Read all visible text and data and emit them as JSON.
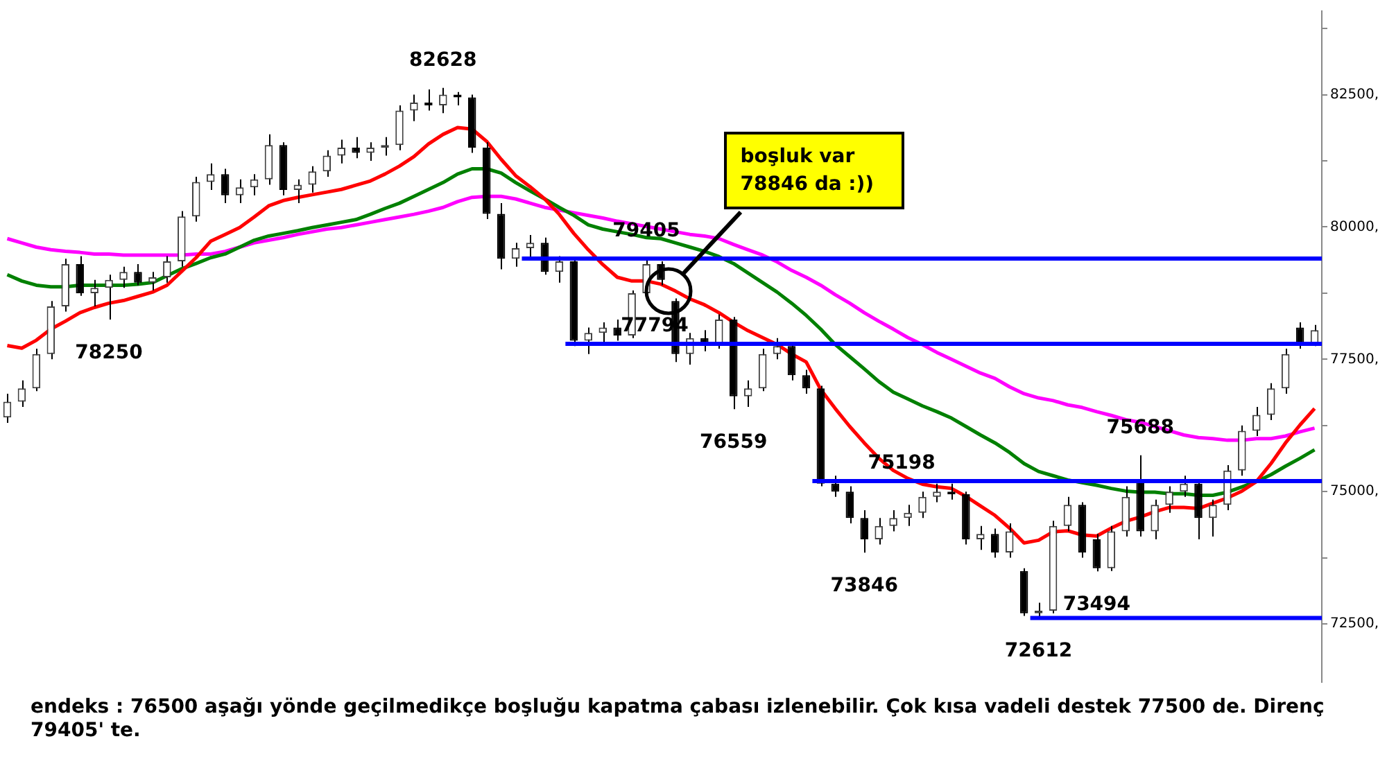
{
  "chart_data": {
    "type": "candlestick",
    "legend": false,
    "tick_labels": "y",
    "categories": [
      null,
      null,
      null,
      null,
      null,
      null,
      null,
      null,
      null,
      null,
      null,
      null,
      null,
      null,
      null,
      null,
      null,
      null,
      null,
      null,
      null,
      null,
      null,
      null,
      null,
      null,
      null,
      null,
      null,
      null,
      null,
      null,
      null,
      null,
      null,
      null,
      null,
      null,
      null,
      null,
      null,
      null,
      null,
      null,
      null,
      null,
      null,
      null,
      null,
      null,
      null,
      null,
      null,
      null,
      null,
      null,
      null,
      null,
      null,
      null,
      null,
      null,
      null,
      null,
      null,
      null,
      null,
      null,
      null,
      null,
      null,
      null,
      null,
      null,
      null,
      null,
      null,
      null,
      null,
      null,
      null,
      null,
      null,
      null,
      null,
      null,
      null,
      null,
      null,
      null,
      null
    ],
    "ohlc": [
      [
        76400,
        76850,
        76300,
        76700
      ],
      [
        76700,
        77100,
        76600,
        76950
      ],
      [
        76950,
        77700,
        76900,
        77600
      ],
      [
        77600,
        78600,
        77500,
        78500
      ],
      [
        78500,
        79400,
        78400,
        79300
      ],
      [
        79300,
        79450,
        78700,
        78750
      ],
      [
        78750,
        79000,
        78500,
        78850
      ],
      [
        78850,
        79100,
        78250,
        79000
      ],
      [
        79000,
        79250,
        78850,
        79150
      ],
      [
        79150,
        79300,
        78900,
        78950
      ],
      [
        78950,
        79150,
        78800,
        79050
      ],
      [
        79050,
        79450,
        78950,
        79350
      ],
      [
        79350,
        80300,
        79250,
        80200
      ],
      [
        80200,
        80950,
        80100,
        80850
      ],
      [
        80850,
        81200,
        80700,
        81000
      ],
      [
        81000,
        81100,
        80450,
        80600
      ],
      [
        80600,
        80900,
        80450,
        80750
      ],
      [
        80750,
        81000,
        80600,
        80900
      ],
      [
        80900,
        81750,
        80800,
        81550
      ],
      [
        81550,
        81600,
        80600,
        80700
      ],
      [
        80700,
        80900,
        80450,
        80800
      ],
      [
        80800,
        81150,
        80650,
        81050
      ],
      [
        81050,
        81450,
        80950,
        81350
      ],
      [
        81350,
        81650,
        81200,
        81500
      ],
      [
        81500,
        81700,
        81300,
        81400
      ],
      [
        81400,
        81600,
        81250,
        81500
      ],
      [
        81500,
        81700,
        81350,
        81550
      ],
      [
        81550,
        82300,
        81450,
        82200
      ],
      [
        82200,
        82500,
        82000,
        82350
      ],
      [
        82350,
        82600,
        82200,
        82300
      ],
      [
        82300,
        82628,
        82150,
        82500
      ],
      [
        82500,
        82550,
        82300,
        82450
      ],
      [
        82450,
        82500,
        81400,
        81500
      ],
      [
        81500,
        81600,
        80150,
        80250
      ],
      [
        80250,
        80450,
        79200,
        79400
      ],
      [
        79400,
        79700,
        79250,
        79600
      ],
      [
        79600,
        79850,
        79400,
        79700
      ],
      [
        79700,
        79800,
        79100,
        79150
      ],
      [
        79150,
        79450,
        78950,
        79350
      ],
      [
        79350,
        79400,
        77750,
        77850
      ],
      [
        77850,
        78100,
        77600,
        78000
      ],
      [
        78000,
        78200,
        77800,
        78100
      ],
      [
        78100,
        78250,
        77850,
        77950
      ],
      [
        77950,
        78800,
        77900,
        78750
      ],
      [
        78750,
        79405,
        78700,
        79300
      ],
      [
        79300,
        79350,
        78900,
        79000
      ],
      [
        78600,
        78650,
        77450,
        77600
      ],
      [
        77600,
        78000,
        77400,
        77900
      ],
      [
        77900,
        78050,
        77650,
        77800
      ],
      [
        77800,
        78350,
        77700,
        78250
      ],
      [
        78250,
        78300,
        76559,
        76800
      ],
      [
        76800,
        77100,
        76600,
        76950
      ],
      [
        76950,
        77700,
        76900,
        77600
      ],
      [
        77600,
        77900,
        77500,
        77750
      ],
      [
        77750,
        77800,
        77100,
        77200
      ],
      [
        77200,
        77300,
        76850,
        76950
      ],
      [
        76950,
        77000,
        75100,
        75150
      ],
      [
        75150,
        75300,
        74900,
        75000
      ],
      [
        75000,
        75100,
        74400,
        74500
      ],
      [
        74500,
        74650,
        73846,
        74100
      ],
      [
        74100,
        74500,
        74000,
        74350
      ],
      [
        74350,
        74650,
        74250,
        74500
      ],
      [
        74500,
        74750,
        74350,
        74600
      ],
      [
        74600,
        75000,
        74500,
        74900
      ],
      [
        74900,
        75150,
        74800,
        75000
      ],
      [
        75000,
        75150,
        74850,
        74950
      ],
      [
        74950,
        75000,
        74000,
        74100
      ],
      [
        74100,
        74350,
        73900,
        74200
      ],
      [
        74200,
        74300,
        73750,
        73850
      ],
      [
        73850,
        74400,
        73750,
        74250
      ],
      [
        73500,
        73550,
        72650,
        72700
      ],
      [
        72700,
        72900,
        72612,
        72750
      ],
      [
        72750,
        74450,
        72700,
        74350
      ],
      [
        74350,
        74900,
        74250,
        74750
      ],
      [
        74750,
        74800,
        73750,
        73850
      ],
      [
        74100,
        74200,
        73494,
        73550
      ],
      [
        73550,
        74350,
        73500,
        74250
      ],
      [
        74250,
        75100,
        74150,
        74900
      ],
      [
        75200,
        75688,
        74150,
        74250
      ],
      [
        74250,
        74850,
        74100,
        74750
      ],
      [
        74750,
        75100,
        74600,
        75000
      ],
      [
        75000,
        75300,
        74900,
        75150
      ],
      [
        75150,
        75200,
        74100,
        74500
      ],
      [
        74500,
        74850,
        74150,
        74750
      ],
      [
        74750,
        75500,
        74650,
        75400
      ],
      [
        75400,
        76250,
        75300,
        76150
      ],
      [
        76150,
        76600,
        76050,
        76450
      ],
      [
        76450,
        77050,
        76350,
        76950
      ],
      [
        76950,
        77700,
        76850,
        77600
      ],
      [
        78100,
        78200,
        77700,
        77800
      ],
      [
        77800,
        78150,
        77750,
        78050
      ]
    ],
    "series": [
      {
        "type": "line",
        "color": "#ff0000",
        "values": [
          77760,
          77710,
          77860,
          78070,
          78220,
          78380,
          78480,
          78560,
          78610,
          78690,
          78770,
          78900,
          79160,
          79420,
          79730,
          79860,
          79990,
          80190,
          80400,
          80500,
          80560,
          80610,
          80660,
          80710,
          80790,
          80870,
          81000,
          81150,
          81330,
          81570,
          81750,
          81880,
          81850,
          81620,
          81280,
          80970,
          80760,
          80530,
          80240,
          79880,
          79570,
          79290,
          79050,
          78980,
          78980,
          78920,
          78790,
          78640,
          78530,
          78380,
          78200,
          78040,
          77910,
          77780,
          77600,
          77450,
          76930,
          76570,
          76230,
          75920,
          75630,
          75400,
          75250,
          75140,
          75090,
          75060,
          74910,
          74730,
          74550,
          74310,
          74030,
          74080,
          74240,
          74260,
          74180,
          74160,
          74310,
          74440,
          74520,
          74620,
          74700,
          74700,
          74680,
          74780,
          74880,
          75010,
          75190,
          75530,
          75920,
          76260,
          76570
        ]
      },
      {
        "type": "line",
        "color": "#008000",
        "values": [
          79100,
          78980,
          78900,
          78870,
          78870,
          78900,
          78900,
          78900,
          78900,
          78920,
          78950,
          79080,
          79210,
          79310,
          79420,
          79490,
          79620,
          79750,
          79830,
          79880,
          79930,
          79990,
          80040,
          80090,
          80140,
          80240,
          80350,
          80450,
          80580,
          80710,
          80840,
          81000,
          81100,
          81100,
          81020,
          80840,
          80680,
          80530,
          80370,
          80220,
          80040,
          79960,
          79910,
          79860,
          79800,
          79780,
          79700,
          79620,
          79540,
          79440,
          79310,
          79130,
          78950,
          78770,
          78560,
          78330,
          78070,
          77780,
          77550,
          77320,
          77080,
          76880,
          76750,
          76620,
          76510,
          76390,
          76230,
          76070,
          75920,
          75740,
          75530,
          75380,
          75300,
          75220,
          75170,
          75120,
          75060,
          75010,
          74990,
          74990,
          74960,
          74960,
          74930,
          74930,
          74990,
          75090,
          75190,
          75320,
          75480,
          75630,
          75790
        ]
      },
      {
        "type": "line",
        "color": "#ff00ff",
        "values": [
          79780,
          79700,
          79620,
          79570,
          79540,
          79520,
          79490,
          79490,
          79470,
          79470,
          79470,
          79470,
          79470,
          79490,
          79490,
          79540,
          79620,
          79700,
          79750,
          79800,
          79860,
          79910,
          79960,
          79990,
          80040,
          80090,
          80140,
          80190,
          80240,
          80300,
          80370,
          80480,
          80560,
          80580,
          80580,
          80530,
          80450,
          80370,
          80320,
          80270,
          80220,
          80170,
          80110,
          80060,
          80010,
          79960,
          79910,
          79860,
          79830,
          79780,
          79670,
          79570,
          79470,
          79340,
          79180,
          79050,
          78900,
          78720,
          78560,
          78380,
          78220,
          78070,
          77910,
          77780,
          77630,
          77500,
          77370,
          77240,
          77140,
          76980,
          76850,
          76770,
          76720,
          76640,
          76590,
          76510,
          76440,
          76360,
          76310,
          76230,
          76150,
          76070,
          76020,
          76000,
          75970,
          75970,
          76000,
          76000,
          76050,
          76130,
          76200
        ]
      }
    ],
    "ylim": [
      71400,
      84080
    ],
    "yticks": [
      {
        "value": 72500,
        "label": "72500,"
      },
      {
        "value": 73750,
        "label": null
      },
      {
        "value": 75000,
        "label": "75000,"
      },
      {
        "value": 76250,
        "label": null
      },
      {
        "value": 77500,
        "label": "77500,"
      },
      {
        "value": 78750,
        "label": null
      },
      {
        "value": 80000,
        "label": "80000,"
      },
      {
        "value": 81250,
        "label": null
      },
      {
        "value": 82500,
        "label": "82500,"
      },
      {
        "value": 83750,
        "label": null
      }
    ],
    "ref_lines": [
      {
        "axis": "y",
        "value": 79405,
        "color": "#0000ff"
      },
      {
        "axis": "y",
        "value": 77794,
        "label": "77794",
        "color": "#0000ff"
      },
      {
        "axis": "y",
        "value": 75198,
        "label": "75198",
        "color": "#0000ff"
      },
      {
        "axis": "y",
        "value": 72612,
        "color": "#0000ff"
      }
    ],
    "annotations": [
      {
        "text": "82628",
        "y": 82628
      },
      {
        "text": "78250",
        "y": 78250
      },
      {
        "text": "79405",
        "y": 79405
      },
      {
        "text": "76559",
        "y": 76559
      },
      {
        "text": "73846",
        "y": 73846
      },
      {
        "text": "72612",
        "y": 72612
      },
      {
        "text": "73494",
        "y": 73494
      },
      {
        "text": "75688",
        "y": 75688
      },
      "boşluk var\n78846 da :))",
      "endeks : 76500 aşağı yönde geçilmedikçe boşluğu kapatma çabası izlenebilir. Çok kısa vadeli destek 77500 de. Direnç 79405' te."
    ]
  }
}
